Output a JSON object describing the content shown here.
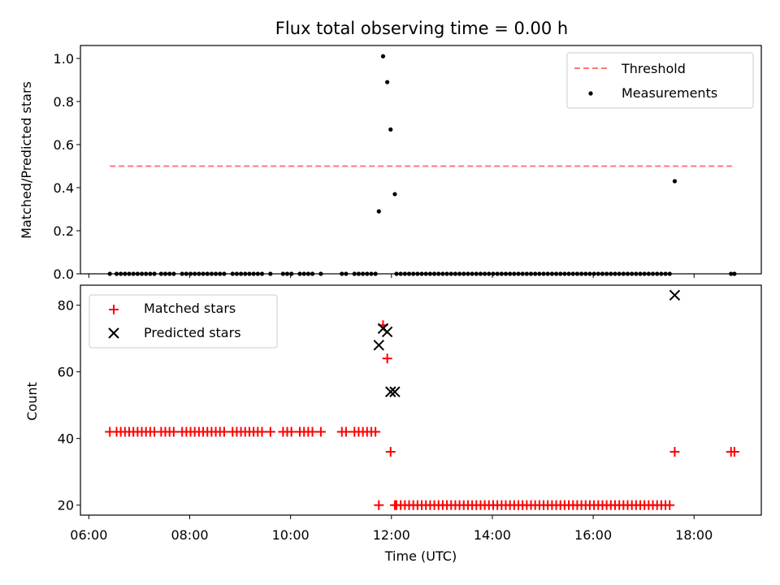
{
  "title": "Flux total observing time = 0.00 h",
  "xlabel": "Time (UTC)",
  "x_ticks": [
    "06:00",
    "08:00",
    "10:00",
    "12:00",
    "14:00",
    "16:00",
    "18:00"
  ],
  "chart_data": [
    {
      "type": "scatter",
      "ylabel": "Matched/Predicted stars",
      "xlim": [
        "05:50",
        "19:20"
      ],
      "ylim": [
        0,
        1.06
      ],
      "y_ticks": [
        "0.0",
        "0.2",
        "0.4",
        "0.6",
        "0.8",
        "1.0"
      ],
      "legend_position": "upper right",
      "threshold": {
        "name": "Threshold",
        "y": 0.5,
        "x_start": "06:25",
        "x_end": "18:45",
        "color": "#ff7777",
        "style": "dashed"
      },
      "series": [
        {
          "name": "Measurements",
          "marker": "dot",
          "color": "#000000",
          "points": [
            {
              "x": "11:45",
              "y": 0.29
            },
            {
              "x": "11:50",
              "y": 1.01
            },
            {
              "x": "11:55",
              "y": 0.89
            },
            {
              "x": "11:59",
              "y": 0.67
            },
            {
              "x": "12:04",
              "y": 0.37
            },
            {
              "x": "17:37",
              "y": 0.43
            }
          ],
          "zero_points": [
            "06:25",
            "06:33",
            "06:38",
            "06:43",
            "06:48",
            "06:53",
            "06:58",
            "07:03",
            "07:08",
            "07:13",
            "07:18",
            "07:26",
            "07:31",
            "07:36",
            "07:41",
            "07:51",
            "07:56",
            "08:01",
            "08:06",
            "08:11",
            "08:16",
            "08:21",
            "08:26",
            "08:31",
            "08:36",
            "08:41",
            "08:51",
            "08:56",
            "09:01",
            "09:06",
            "09:11",
            "09:16",
            "09:21",
            "09:26",
            "09:36",
            "09:51",
            "09:56",
            "10:01",
            "10:11",
            "10:16",
            "10:21",
            "10:26",
            "10:36",
            "11:01",
            "11:06",
            "11:16",
            "11:21",
            "11:26",
            "11:31",
            "11:36",
            "11:41",
            "12:06",
            "12:11",
            "12:16",
            "12:21",
            "12:26",
            "12:31",
            "12:36",
            "12:41",
            "12:46",
            "12:51",
            "12:56",
            "13:01",
            "13:06",
            "13:11",
            "13:16",
            "13:21",
            "13:26",
            "13:31",
            "13:36",
            "13:41",
            "13:46",
            "13:51",
            "13:56",
            "14:01",
            "14:06",
            "14:11",
            "14:16",
            "14:21",
            "14:26",
            "14:31",
            "14:36",
            "14:41",
            "14:46",
            "14:51",
            "14:56",
            "15:01",
            "15:06",
            "15:11",
            "15:16",
            "15:21",
            "15:26",
            "15:31",
            "15:36",
            "15:41",
            "15:46",
            "15:51",
            "15:56",
            "16:01",
            "16:06",
            "16:11",
            "16:16",
            "16:21",
            "16:26",
            "16:31",
            "16:36",
            "16:41",
            "16:46",
            "16:51",
            "16:56",
            "17:01",
            "17:06",
            "17:11",
            "17:16",
            "17:21",
            "17:26",
            "17:31",
            "18:44",
            "18:48"
          ]
        }
      ]
    },
    {
      "type": "scatter",
      "ylabel": "Count",
      "xlim": [
        "05:50",
        "19:20"
      ],
      "ylim": [
        17,
        86
      ],
      "y_ticks": [
        "20",
        "40",
        "60",
        "80"
      ],
      "legend_position": "upper left",
      "series": [
        {
          "name": "Matched stars",
          "marker": "plus",
          "color": "#ff0000",
          "points": [
            {
              "x": "11:45",
              "y": 20
            },
            {
              "x": "11:50",
              "y": 74
            },
            {
              "x": "11:55",
              "y": 64
            },
            {
              "x": "11:59",
              "y": 36
            },
            {
              "x": "12:04",
              "y": 20
            },
            {
              "x": "17:37",
              "y": 36
            },
            {
              "x": "18:44",
              "y": 36
            },
            {
              "x": "18:48",
              "y": 36
            }
          ],
          "level_42": [
            "06:25",
            "06:33",
            "06:38",
            "06:43",
            "06:48",
            "06:53",
            "06:58",
            "07:03",
            "07:08",
            "07:13",
            "07:18",
            "07:26",
            "07:31",
            "07:36",
            "07:41",
            "07:51",
            "07:56",
            "08:01",
            "08:06",
            "08:11",
            "08:16",
            "08:21",
            "08:26",
            "08:31",
            "08:36",
            "08:41",
            "08:51",
            "08:56",
            "09:01",
            "09:06",
            "09:11",
            "09:16",
            "09:21",
            "09:26",
            "09:36",
            "09:51",
            "09:56",
            "10:01",
            "10:11",
            "10:16",
            "10:21",
            "10:26",
            "10:36",
            "11:01",
            "11:06",
            "11:16",
            "11:21",
            "11:26",
            "11:31",
            "11:36",
            "11:41"
          ],
          "level_20": [
            "12:06",
            "12:11",
            "12:16",
            "12:21",
            "12:26",
            "12:31",
            "12:36",
            "12:41",
            "12:46",
            "12:51",
            "12:56",
            "13:01",
            "13:06",
            "13:11",
            "13:16",
            "13:21",
            "13:26",
            "13:31",
            "13:36",
            "13:41",
            "13:46",
            "13:51",
            "13:56",
            "14:01",
            "14:06",
            "14:11",
            "14:16",
            "14:21",
            "14:26",
            "14:31",
            "14:36",
            "14:41",
            "14:46",
            "14:51",
            "14:56",
            "15:01",
            "15:06",
            "15:11",
            "15:16",
            "15:21",
            "15:26",
            "15:31",
            "15:36",
            "15:41",
            "15:46",
            "15:51",
            "15:56",
            "16:01",
            "16:06",
            "16:11",
            "16:16",
            "16:21",
            "16:26",
            "16:31",
            "16:36",
            "16:41",
            "16:46",
            "16:51",
            "16:56",
            "17:01",
            "17:06",
            "17:11",
            "17:16",
            "17:21",
            "17:26",
            "17:31"
          ]
        },
        {
          "name": "Predicted stars",
          "marker": "cross",
          "color": "#000000",
          "points": [
            {
              "x": "11:45",
              "y": 68
            },
            {
              "x": "11:50",
              "y": 73
            },
            {
              "x": "11:55",
              "y": 72
            },
            {
              "x": "11:59",
              "y": 54
            },
            {
              "x": "12:04",
              "y": 54
            },
            {
              "x": "17:37",
              "y": 83
            }
          ]
        }
      ]
    }
  ]
}
